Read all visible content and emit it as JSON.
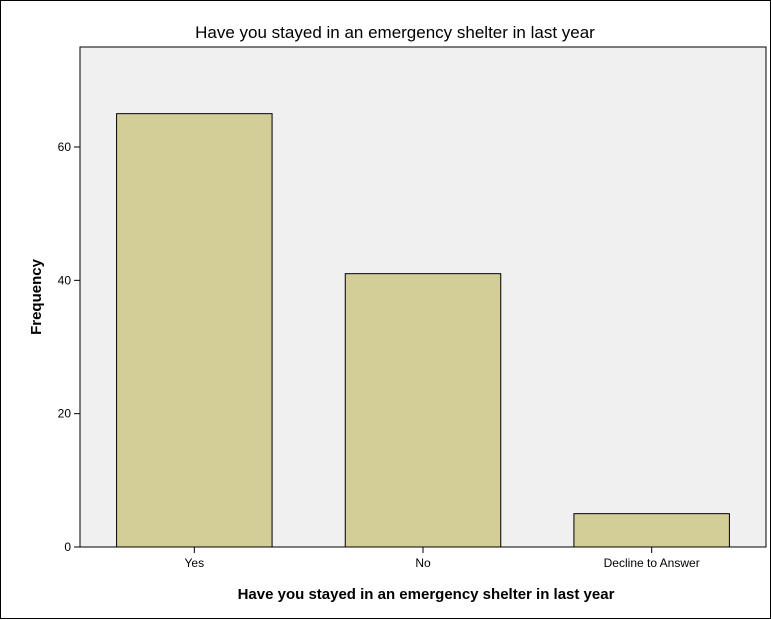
{
  "chart_data": {
    "type": "bar",
    "title": "Have you stayed in an emergency shelter in last year",
    "xlabel": "Have you stayed in an emergency shelter in last year",
    "ylabel": "Frequency",
    "categories": [
      "Yes",
      "No",
      "Decline to Answer"
    ],
    "values": [
      65,
      41,
      5
    ],
    "yticks": [
      "0",
      "20",
      "40",
      "60"
    ],
    "ylim": [
      0,
      75
    ],
    "grid": false,
    "colors": {
      "plot_background": "#f0f0f0",
      "bar_fill": "#d3ce97",
      "bar_stroke": "#000000"
    }
  }
}
